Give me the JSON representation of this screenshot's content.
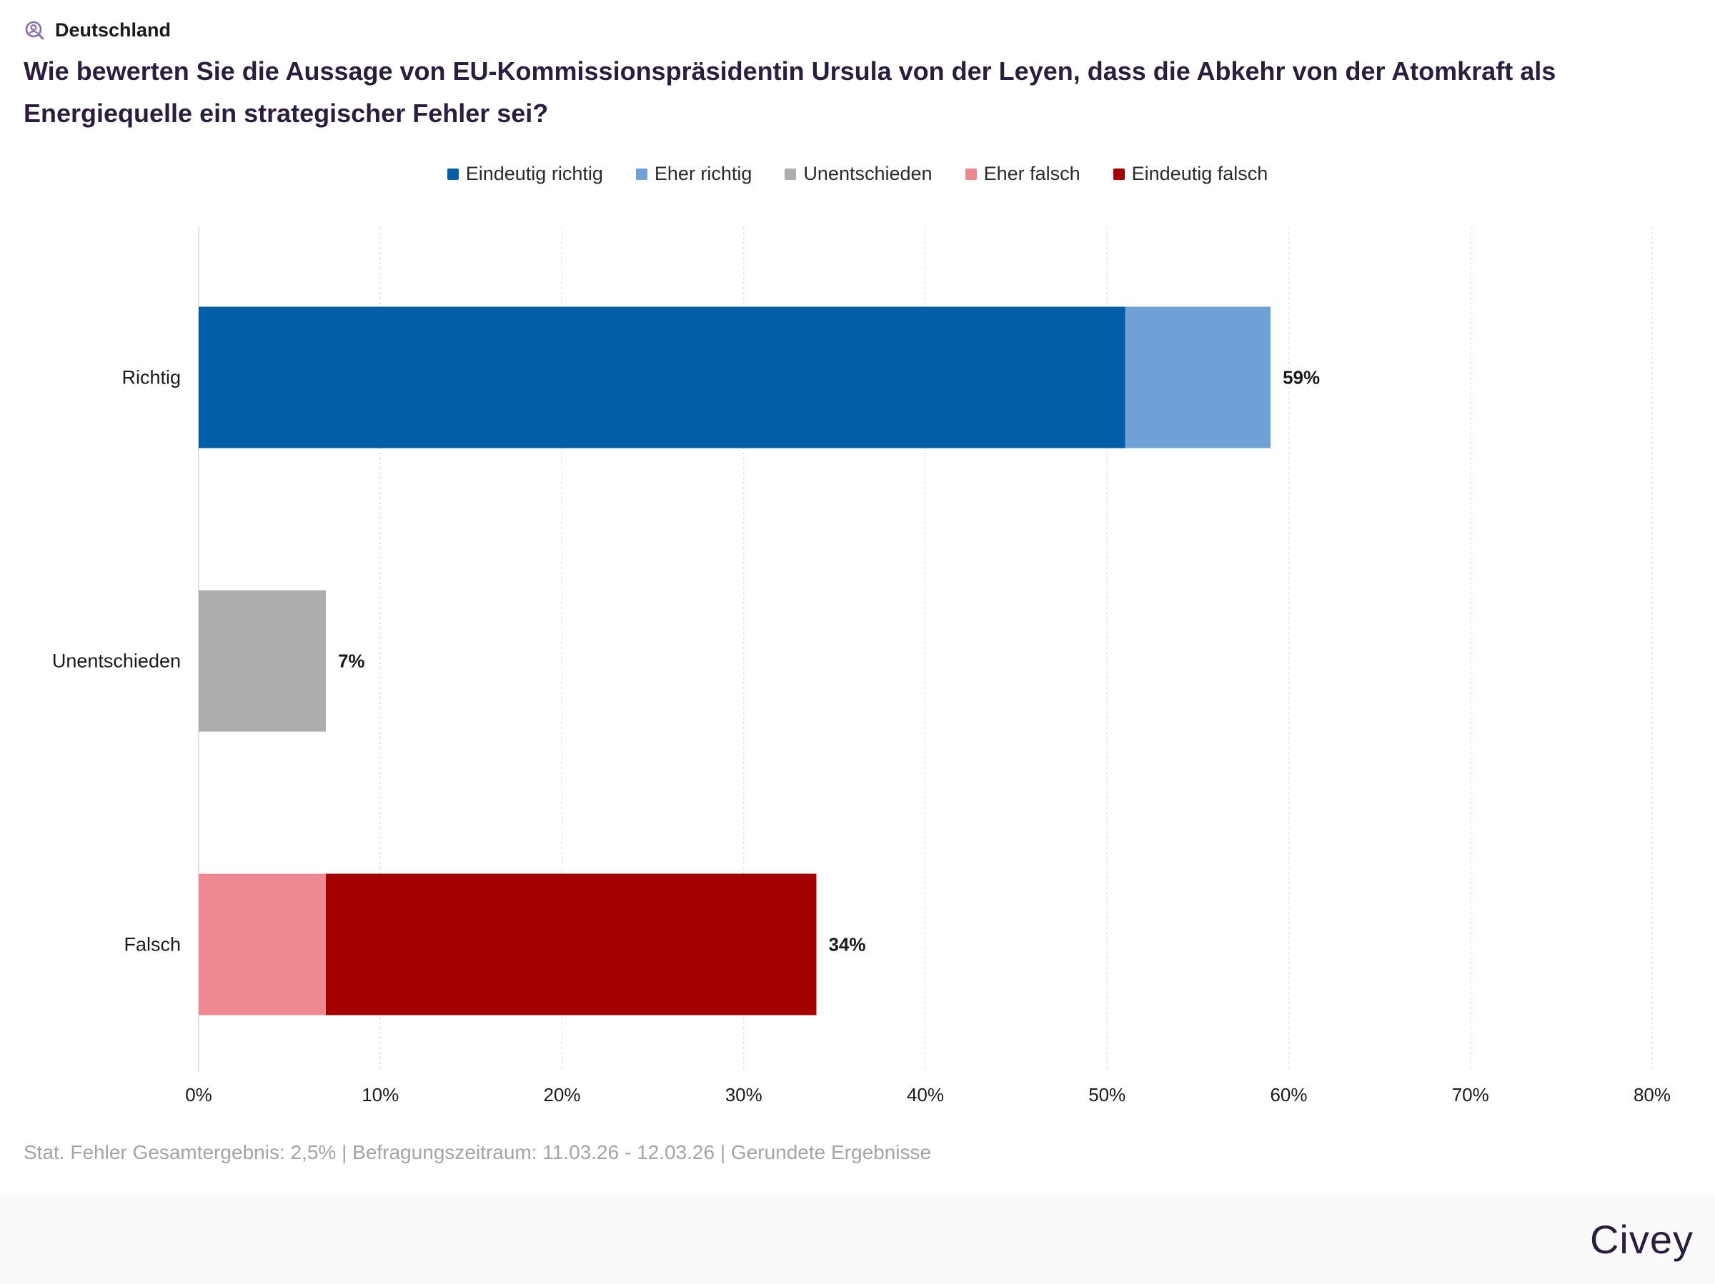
{
  "header": {
    "region_icon": "person-search-icon",
    "region": "Deutschland",
    "title": "Wie bewerten Sie die Aussage von EU-Kommissionspräsidentin Ursula von der Leyen, dass die Abkehr von der Atomkraft als Energiequelle ein strategischer Fehler sei?"
  },
  "legend": [
    {
      "label": "Eindeutig richtig",
      "color": "#035ea8"
    },
    {
      "label": "Eher richtig",
      "color": "#70a1d6"
    },
    {
      "label": "Unentschieden",
      "color": "#adadad"
    },
    {
      "label": "Eher falsch",
      "color": "#ef8991"
    },
    {
      "label": "Eindeutig falsch",
      "color": "#a50000"
    }
  ],
  "chart_data": {
    "type": "bar",
    "orientation": "horizontal",
    "stacked": true,
    "categories": [
      "Richtig",
      "Unentschieden",
      "Falsch"
    ],
    "segments": [
      [
        {
          "series": "Eindeutig richtig",
          "value": 51,
          "color": "#035ea8"
        },
        {
          "series": "Eher richtig",
          "value": 8,
          "color": "#70a1d6"
        }
      ],
      [
        {
          "series": "Unentschieden",
          "value": 7,
          "color": "#adadad"
        }
      ],
      [
        {
          "series": "Eher falsch",
          "value": 7,
          "color": "#ef8991"
        },
        {
          "series": "Eindeutig falsch",
          "value": 27,
          "color": "#a50000"
        }
      ]
    ],
    "totals": [
      59,
      7,
      34
    ],
    "total_labels": [
      "59%",
      "7%",
      "34%"
    ],
    "xlim": [
      0,
      80
    ],
    "xticks": [
      0,
      10,
      20,
      30,
      40,
      50,
      60,
      70,
      80
    ],
    "xtick_labels": [
      "0%",
      "10%",
      "20%",
      "30%",
      "40%",
      "50%",
      "60%",
      "70%",
      "80%"
    ],
    "grid": true,
    "legend_position": "top-center"
  },
  "footnote": "Stat. Fehler Gesamtergebnis: 2,5% | Befragungszeitraum: 11.03.26 - 12.03.26 | Gerundete Ergebnisse",
  "brand": "Civey"
}
